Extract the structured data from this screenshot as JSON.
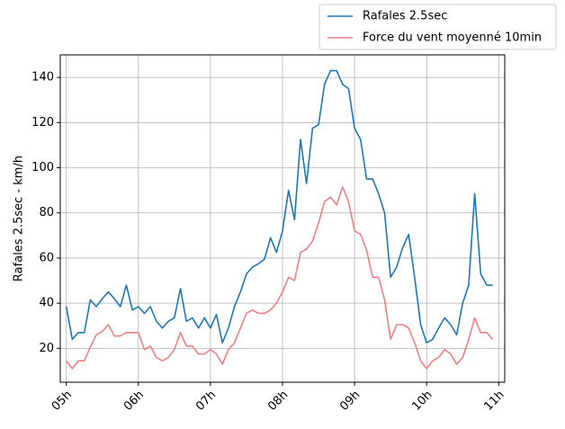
{
  "chart_data": {
    "type": "line",
    "title": "",
    "xlabel": "",
    "ylabel": "Rafales 2.5sec - km/h",
    "x_ticks": [
      "05h",
      "06h",
      "07h",
      "08h",
      "09h",
      "10h",
      "11h"
    ],
    "x_tick_values": [
      0,
      60,
      120,
      180,
      240,
      300,
      360
    ],
    "xlim": [
      -5,
      365
    ],
    "ylim": [
      5,
      150
    ],
    "y_ticks": [
      20,
      40,
      60,
      80,
      100,
      120,
      140
    ],
    "grid": true,
    "legend_position": "top-right (outside plot)",
    "x_step_minutes": 5,
    "series": [
      {
        "name": "Rafales 2.5sec",
        "color": "#1f77b4",
        "values": [
          38.5,
          24,
          27,
          27,
          41.5,
          38.5,
          42,
          45,
          42,
          38.5,
          48,
          37,
          38.5,
          35.5,
          38.5,
          32,
          29,
          32,
          33.5,
          46.5,
          32,
          33.5,
          29,
          33.5,
          29,
          35,
          22.5,
          29,
          38.5,
          45,
          53,
          56,
          57.5,
          59.5,
          69,
          62.5,
          72,
          90,
          77,
          112.5,
          93,
          117.5,
          119,
          137,
          143,
          143,
          137,
          135,
          117.5,
          112.5,
          95,
          95,
          88.5,
          80,
          51.5,
          56,
          64.5,
          70.5,
          51.5,
          30.5,
          22.5,
          24,
          29,
          33.5,
          30.5,
          26,
          40,
          48,
          88.5,
          53,
          48,
          48
        ]
      },
      {
        "name": "Force du vent moyenné 10min",
        "color": "#f08080",
        "values": [
          14.5,
          11,
          14.5,
          14.5,
          20.5,
          26,
          27.5,
          30.5,
          25.5,
          25.5,
          27,
          27,
          27,
          19.5,
          21,
          16,
          14.5,
          16,
          19.5,
          27,
          21,
          21,
          17.5,
          17.5,
          19.5,
          17.5,
          13,
          19.5,
          22.5,
          29,
          35.5,
          37,
          35.5,
          35.5,
          37,
          40,
          45,
          51.5,
          50,
          62.5,
          64,
          67.5,
          75.5,
          85,
          87,
          83.5,
          91.5,
          85,
          72,
          70.5,
          63.5,
          51.5,
          51.5,
          41.5,
          24,
          30.5,
          30.5,
          29,
          22.5,
          14.5,
          11,
          14.5,
          16,
          19.5,
          17.5,
          13,
          16,
          24,
          33.5,
          27,
          27,
          24
        ]
      }
    ]
  }
}
